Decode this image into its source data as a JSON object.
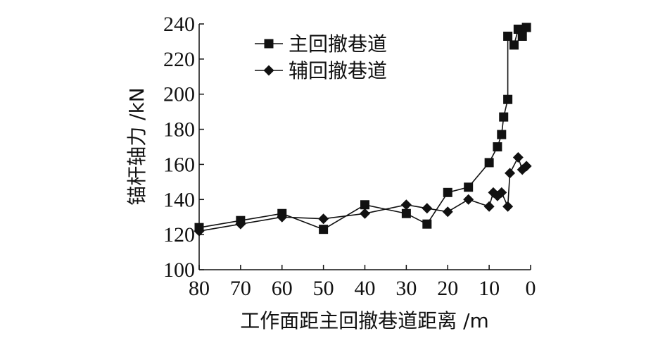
{
  "chart_data": {
    "type": "line",
    "xlabel": "工作面距主回撤巷道距离 /m",
    "ylabel": "锚杆轴力 /kN",
    "xlim": [
      80,
      0
    ],
    "ylim": [
      100,
      240
    ],
    "x_ticks": [
      80,
      70,
      60,
      50,
      40,
      30,
      20,
      10,
      0
    ],
    "y_ticks": [
      100,
      120,
      140,
      160,
      180,
      200,
      220,
      240
    ],
    "x_tick_labels": [
      "80",
      "70",
      "60",
      "50",
      "40",
      "30",
      "20",
      "10",
      "0"
    ],
    "y_tick_labels": [
      "100",
      "120",
      "140",
      "160",
      "180",
      "200",
      "220",
      "240"
    ],
    "grid": false,
    "legend_position": "top-left",
    "colors": {
      "line": "#111111",
      "axis": "#111111"
    },
    "series": [
      {
        "name": "主回撤巷道",
        "marker": "square",
        "points": [
          [
            80,
            124
          ],
          [
            70,
            128
          ],
          [
            60,
            132
          ],
          [
            50,
            123
          ],
          [
            40,
            137
          ],
          [
            30,
            132
          ],
          [
            25,
            126
          ],
          [
            20,
            144
          ],
          [
            15,
            147
          ],
          [
            10,
            161
          ],
          [
            8,
            170
          ],
          [
            7,
            177
          ],
          [
            6.5,
            187
          ],
          [
            5.5,
            197
          ],
          [
            5.5,
            233
          ],
          [
            4,
            228
          ],
          [
            3,
            237
          ],
          [
            2,
            233
          ],
          [
            1,
            238
          ]
        ]
      },
      {
        "name": "辅回撤巷道",
        "marker": "diamond",
        "points": [
          [
            80,
            122
          ],
          [
            70,
            126
          ],
          [
            60,
            130
          ],
          [
            50,
            129
          ],
          [
            40,
            132
          ],
          [
            30,
            137
          ],
          [
            25,
            135
          ],
          [
            20,
            133
          ],
          [
            15,
            140
          ],
          [
            10,
            136
          ],
          [
            9,
            144
          ],
          [
            8,
            142
          ],
          [
            7,
            144
          ],
          [
            5.5,
            136
          ],
          [
            5,
            155
          ],
          [
            3,
            164
          ],
          [
            2,
            157
          ],
          [
            1,
            159
          ]
        ]
      }
    ]
  }
}
